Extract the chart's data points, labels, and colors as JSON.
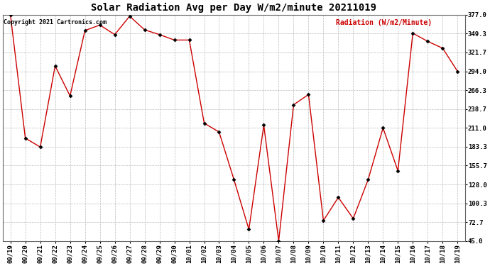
{
  "title": "Solar Radiation Avg per Day W/m2/minute 20211019",
  "copyright": "Copyright 2021 Cartronics.com",
  "ylabel": "Radiation (W/m2/Minute)",
  "x_labels": [
    "09/19",
    "09/20",
    "09/21",
    "09/22",
    "09/23",
    "09/24",
    "09/25",
    "09/26",
    "09/27",
    "09/28",
    "09/29",
    "09/30",
    "10/01",
    "10/02",
    "10/03",
    "10/04",
    "10/05",
    "10/06",
    "10/07",
    "10/08",
    "10/09",
    "10/10",
    "10/11",
    "10/12",
    "10/13",
    "10/14",
    "10/15",
    "10/16",
    "10/17",
    "10/18",
    "10/19"
  ],
  "y_values": [
    377.0,
    196.0,
    183.0,
    302.0,
    258.0,
    354.0,
    362.0,
    348.0,
    375.0,
    355.0,
    348.0,
    340.0,
    340.0,
    218.0,
    205.0,
    135.0,
    62.0,
    215.0,
    45.0,
    245.0,
    260.0,
    75.0,
    109.0,
    78.0,
    135.0,
    211.0,
    148.0,
    350.0,
    338.0,
    328.0,
    294.0
  ],
  "line_color": "#cc0000",
  "marker_color": "#000000",
  "background_color": "#ffffff",
  "grid_color": "#bbbbbb",
  "ylim_min": 45.0,
  "ylim_max": 377.0,
  "yticks": [
    45.0,
    72.7,
    100.3,
    128.0,
    155.7,
    183.3,
    211.0,
    238.7,
    266.3,
    294.0,
    321.7,
    349.3,
    377.0
  ],
  "title_fontsize": 10,
  "copyright_fontsize": 6,
  "ylabel_fontsize": 7,
  "tick_fontsize": 6.5
}
